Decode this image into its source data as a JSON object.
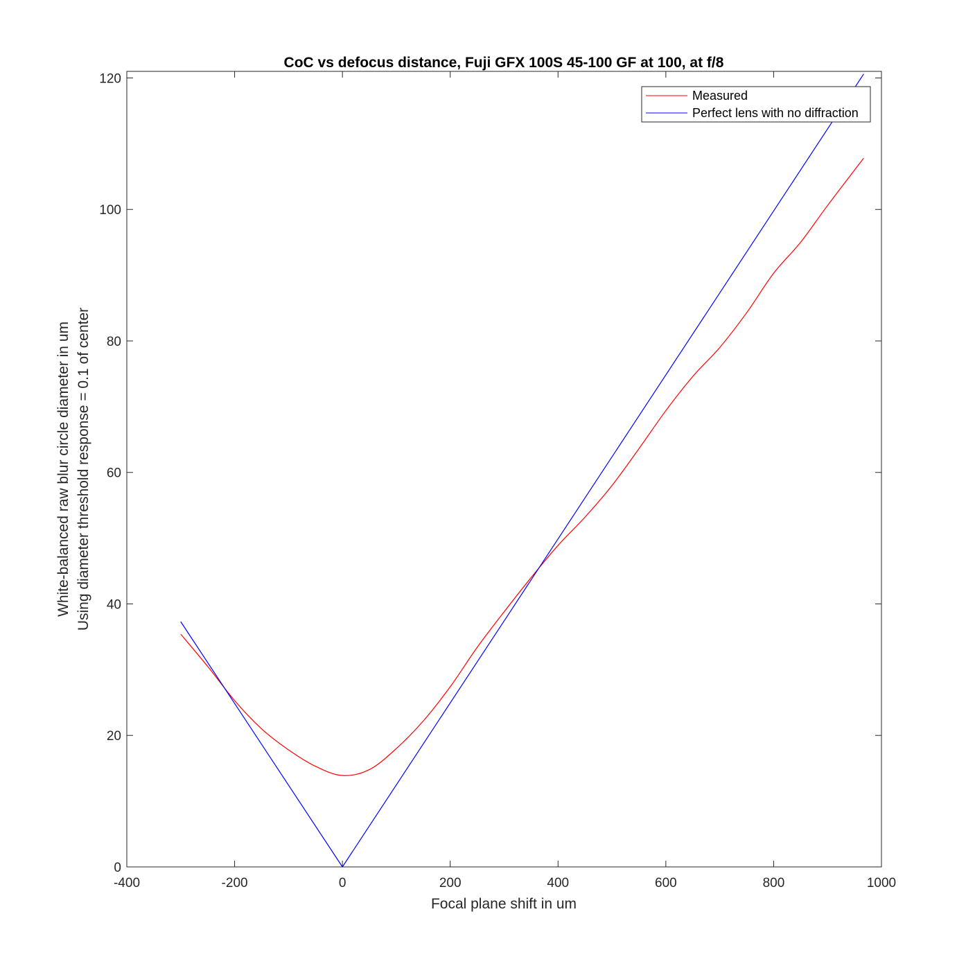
{
  "chart_data": {
    "type": "line",
    "title": "CoC vs defocus distance, Fuji GFX 100S 45-100 GF at 100, at f/8",
    "xlabel": "Focal plane shift in um",
    "ylabel_line1": "White-balanced raw blur circle diameter in um",
    "ylabel_line2": "Using diameter threshold response = 0.1 of center",
    "xlim": [
      -400,
      1000
    ],
    "ylim": [
      0,
      121
    ],
    "xticks": [
      -400,
      -200,
      0,
      200,
      400,
      600,
      800,
      1000
    ],
    "xtick_labels": [
      "-400",
      "-200",
      "0",
      "200",
      "400",
      "600",
      "800",
      "1000"
    ],
    "yticks": [
      0,
      20,
      40,
      60,
      80,
      100,
      120
    ],
    "ytick_labels": [
      "0",
      "20",
      "40",
      "60",
      "80",
      "100",
      "120"
    ],
    "grid": false,
    "legend_position": "top-right",
    "series": [
      {
        "name": "Measured",
        "color": "#ff0000",
        "x": [
          -300,
          -250,
          -200,
          -150,
          -100,
          -50,
          0,
          50,
          100,
          150,
          200,
          250,
          300,
          350,
          400,
          450,
          500,
          550,
          600,
          650,
          700,
          750,
          800,
          850,
          900,
          967
        ],
        "y": [
          35.4,
          30.5,
          25.3,
          21.0,
          17.8,
          15.3,
          13.9,
          14.8,
          18.0,
          22.2,
          27.4,
          33.4,
          38.8,
          44.0,
          48.9,
          53.2,
          58.0,
          63.6,
          69.4,
          74.6,
          79.0,
          84.3,
          90.3,
          95.0,
          100.6,
          107.8
        ]
      },
      {
        "name": "Perfect lens with no diffraction",
        "color": "#0000ff",
        "x": [
          -300,
          0,
          967
        ],
        "y": [
          37.3,
          0,
          120.6
        ]
      }
    ]
  }
}
